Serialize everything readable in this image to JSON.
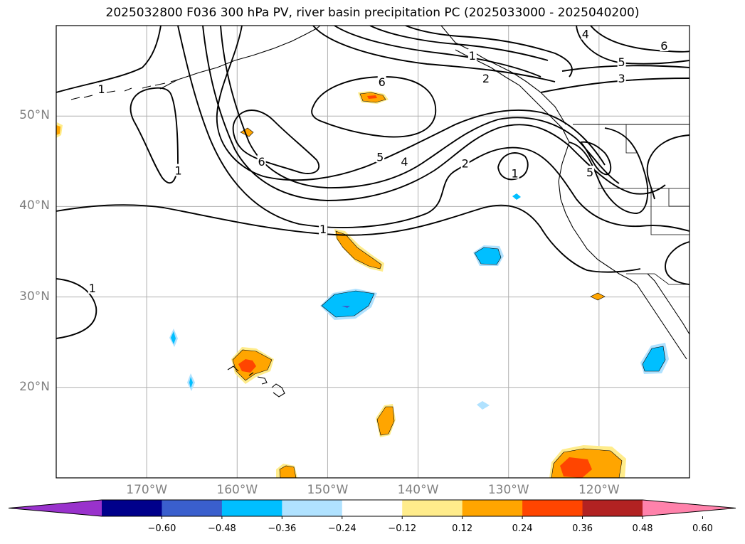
{
  "title": "2025032800 F036 300 hPa PV, river basin precipitation PC (2025033000 - 2025040200)",
  "map": {
    "lon_range": [
      -180,
      -110
    ],
    "lat_range": [
      10,
      60
    ],
    "lat_ticks": [
      {
        "value": 50,
        "label": "50°N"
      },
      {
        "value": 40,
        "label": "40°N"
      },
      {
        "value": 30,
        "label": "30°N"
      },
      {
        "value": 20,
        "label": "20°N"
      }
    ],
    "lon_ticks": [
      {
        "value": -170,
        "label": "170°W"
      },
      {
        "value": -160,
        "label": "160°W"
      },
      {
        "value": -150,
        "label": "150°W"
      },
      {
        "value": -140,
        "label": "140°W"
      },
      {
        "value": -130,
        "label": "130°W"
      },
      {
        "value": -120,
        "label": "120°W"
      }
    ],
    "grid": true,
    "contour_labels": [
      {
        "text": "1",
        "lon": -175,
        "lat": 53.0
      },
      {
        "text": "1",
        "lon": -166.5,
        "lat": 44.0
      },
      {
        "text": "1",
        "lon": -176,
        "lat": 31.0
      },
      {
        "text": "1",
        "lon": -150.5,
        "lat": 37.5
      },
      {
        "text": "1",
        "lon": -129.3,
        "lat": 43.7
      },
      {
        "text": "1",
        "lon": -134,
        "lat": 56.7
      },
      {
        "text": "2",
        "lon": -132.5,
        "lat": 54.2
      },
      {
        "text": "2",
        "lon": -134.8,
        "lat": 44.8
      },
      {
        "text": "3",
        "lon": -117.5,
        "lat": 54.2
      },
      {
        "text": "4",
        "lon": -121.5,
        "lat": 59.1
      },
      {
        "text": "4",
        "lon": -141.5,
        "lat": 45.0
      },
      {
        "text": "5",
        "lon": -117.5,
        "lat": 56.0
      },
      {
        "text": "5",
        "lon": -144.2,
        "lat": 45.5
      },
      {
        "text": "5",
        "lon": -121,
        "lat": 43.8
      },
      {
        "text": "6",
        "lon": -144.0,
        "lat": 53.8
      },
      {
        "text": "6",
        "lon": -157.3,
        "lat": 45.0
      },
      {
        "text": "6",
        "lon": -112.8,
        "lat": 57.8
      }
    ]
  },
  "colorbar": {
    "colors": [
      "#9932cc",
      "#00008b",
      "#3a5fcd",
      "#00bfff",
      "#b0e2ff",
      "#ffffff",
      "#ffec8b",
      "#ffa500",
      "#ff4500",
      "#b22222",
      "#ff82ab"
    ],
    "tick_labels": [
      "−0.60",
      "−0.48",
      "−0.36",
      "−0.24",
      "−0.12",
      "0.12",
      "0.24",
      "0.36",
      "0.48",
      "0.60"
    ]
  }
}
